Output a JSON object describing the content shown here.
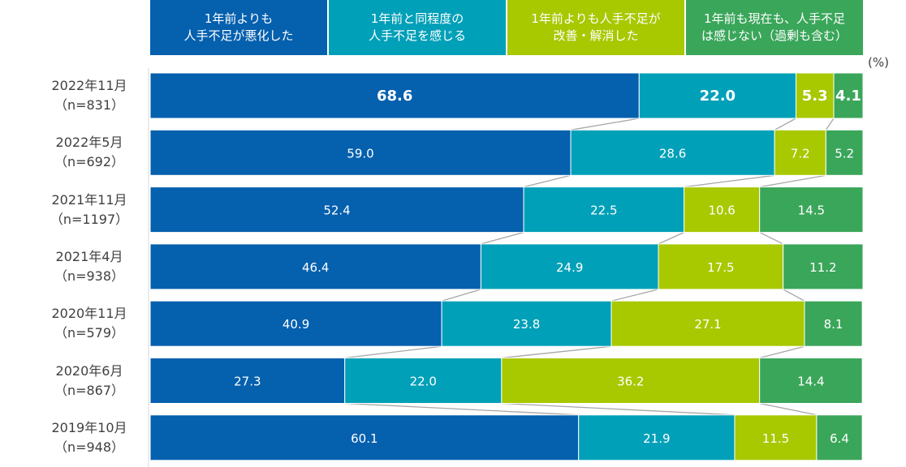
{
  "chart_data": {
    "type": "bar",
    "stacked": true,
    "orientation": "horizontal",
    "unit_label": "(%)",
    "legend_placement": "top",
    "series": [
      {
        "name": "1年前よりも\n人手不足が悪化した",
        "color": "#0560ae",
        "values": [
          68.6,
          59.0,
          52.4,
          46.4,
          40.9,
          27.3,
          60.1
        ]
      },
      {
        "name": "1年前と同程度の\n人手不足を感じる",
        "color": "#00a0b8",
        "values": [
          22.0,
          28.6,
          22.5,
          24.9,
          23.8,
          22.0,
          21.9
        ]
      },
      {
        "name": "1年前よりも人手不足が\n改善・解消した",
        "color": "#a8c800",
        "values": [
          5.3,
          7.2,
          10.6,
          17.5,
          27.1,
          36.2,
          11.5
        ]
      },
      {
        "name": "1年前も現在も、人手不足\nは感じない（過剰も含む）",
        "color": "#3aa65a",
        "values": [
          4.1,
          5.2,
          14.5,
          11.2,
          8.1,
          14.4,
          6.4
        ]
      }
    ],
    "categories": [
      {
        "period": "2022年11月",
        "n": "（n=831）"
      },
      {
        "period": "2022年5月",
        "n": "（n=692）"
      },
      {
        "period": "2021年11月",
        "n": "（n=1197）"
      },
      {
        "period": "2021年4月",
        "n": "（n=938）"
      },
      {
        "period": "2020年11月",
        "n": "（n=579）"
      },
      {
        "period": "2020年6月",
        "n": "（n=867）"
      },
      {
        "period": "2019年10月",
        "n": "（n=948）"
      }
    ],
    "highlight_first_row": true,
    "connector_lines": true
  }
}
